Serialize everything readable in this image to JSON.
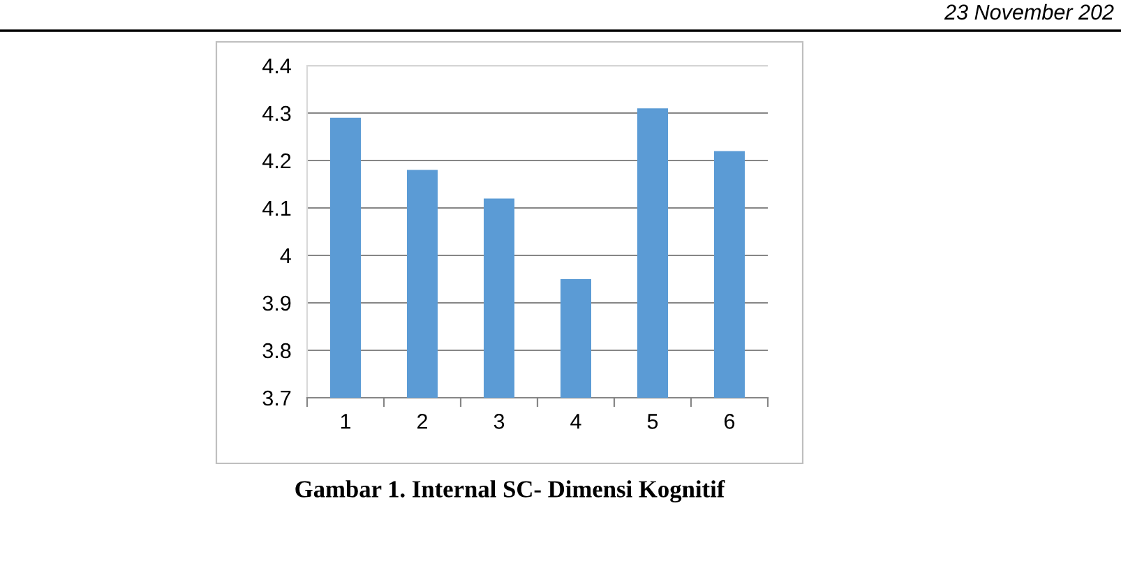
{
  "chart_data": {
    "type": "bar",
    "categories": [
      "1",
      "2",
      "3",
      "4",
      "5",
      "6"
    ],
    "values": [
      4.29,
      4.18,
      4.12,
      3.95,
      4.31,
      4.22
    ],
    "color": "#5b9bd5",
    "ylim": [
      3.7,
      4.4
    ],
    "yticks": [
      {
        "value": 3.7,
        "label": "3.7"
      },
      {
        "value": 3.8,
        "label": "3.8"
      },
      {
        "value": 3.9,
        "label": "3.9"
      },
      {
        "value": 4.0,
        "label": "4"
      },
      {
        "value": 4.1,
        "label": "4.1"
      },
      {
        "value": 4.2,
        "label": "4.2"
      },
      {
        "value": 4.3,
        "label": "4.3"
      },
      {
        "value": 4.4,
        "label": "4.4"
      }
    ],
    "grid": "y",
    "legend": false,
    "annotations": [
      "Gambar 1. Internal SC- Dimensi Kognitif",
      "23 November 202"
    ]
  }
}
